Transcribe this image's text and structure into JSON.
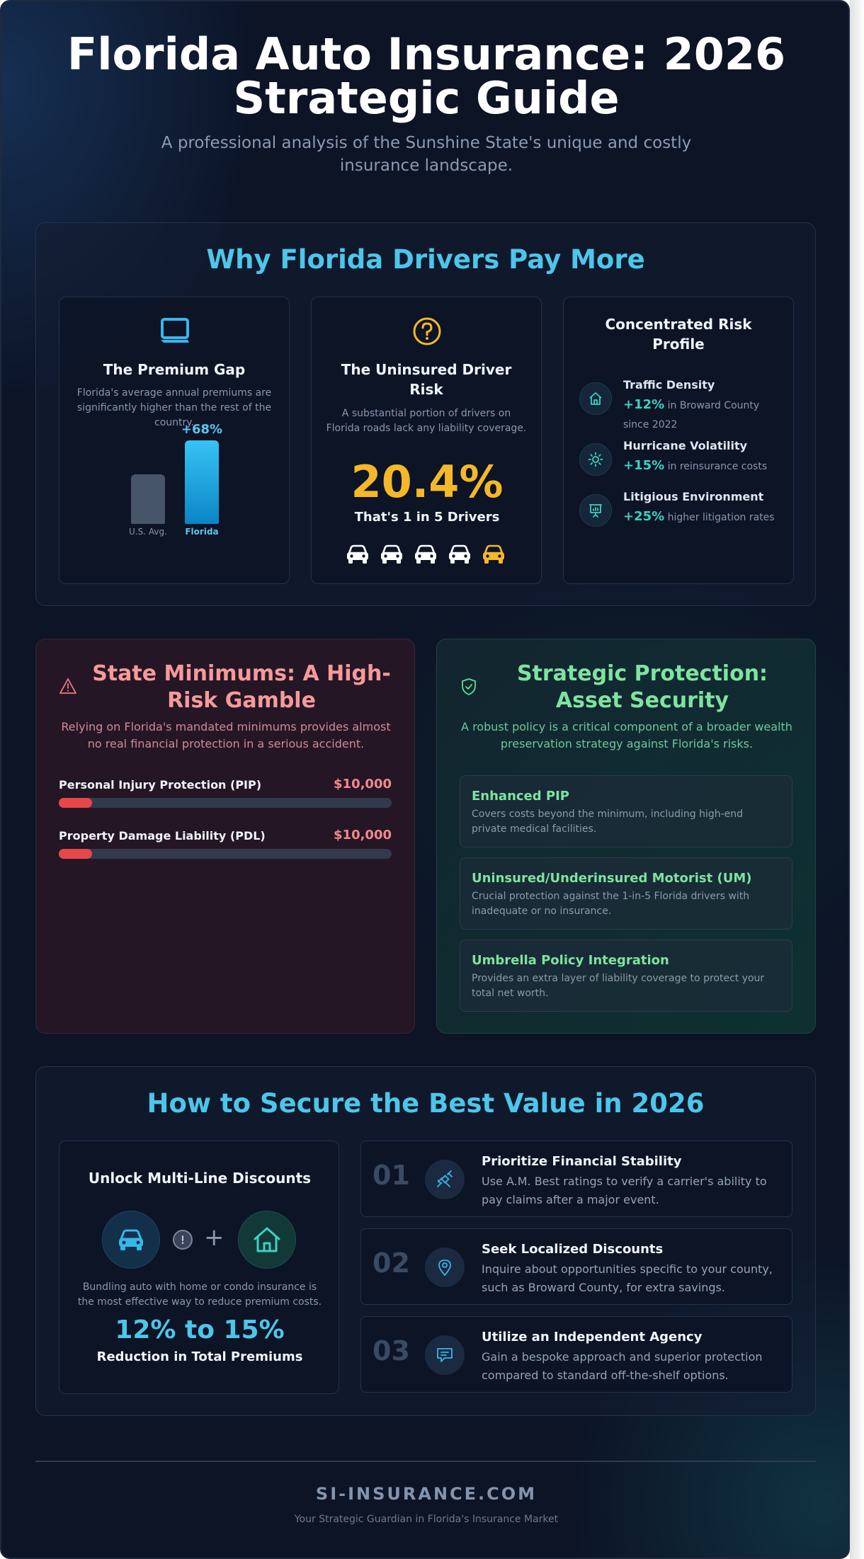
{
  "header": {
    "title_line1": "Florida Auto Insurance: 2026",
    "title_line2": "Strategic Guide",
    "subtitle": "A professional analysis of the Sunshine State's unique and costly insurance landscape."
  },
  "why_section": {
    "title": "Why Florida Drivers Pay More",
    "premium_gap": {
      "icon": "laptop-icon",
      "title": "The Premium Gap",
      "text": "Florida's average annual premiums are significantly higher than the rest of the country.",
      "bars": [
        {
          "label": "U.S. Avg.",
          "relative_value": 1.0,
          "color": "#475569"
        },
        {
          "label": "Florida",
          "relative_value": 1.68,
          "color": "#1aa6e6"
        }
      ],
      "delta_label": "+68%"
    },
    "uninsured": {
      "icon": "question-circle-icon",
      "title_line1": "The Uninsured Driver",
      "title_line2": "Risk",
      "text": "A substantial portion of drivers on Florida roads lack any liability coverage.",
      "stat": "20.4%",
      "stat_caption": "That's 1 in 5 Drivers",
      "stat_color": "#f5b829",
      "cars_total": 5,
      "cars_highlighted": 1
    },
    "risk_profile": {
      "title_line1": "Concentrated Risk",
      "title_line2": "Profile",
      "items": [
        {
          "icon": "home-icon",
          "name": "Traffic Density",
          "pct": "+12%",
          "detail_line1": " in Broward County",
          "detail_line2": "since 2022"
        },
        {
          "icon": "sun-icon",
          "name": "Hurricane Volatility",
          "pct": "+15%",
          "detail_line1": " in reinsurance costs",
          "detail_line2": ""
        },
        {
          "icon": "presentation-chart-icon",
          "name": "Litigious Environment",
          "pct": "+25%",
          "detail_line1": " higher litigation rates",
          "detail_line2": ""
        }
      ]
    }
  },
  "minimums": {
    "icon": "warning-triangle-icon",
    "title_line1": "State Minimums: A High-",
    "title_line2": "Risk Gamble",
    "text": "Relying on Florida's mandated minimums provides almost no real financial protection in a serious accident.",
    "items": [
      {
        "label": "Personal Injury Protection (PIP)",
        "value": "$10,000",
        "fill_fraction": 0.1
      },
      {
        "label": "Property Damage Liability (PDL)",
        "value": "$10,000",
        "fill_fraction": 0.1
      }
    ]
  },
  "protection": {
    "icon": "shield-check-icon",
    "title_line1": "Strategic Protection:",
    "title_line2": "Asset Security",
    "text": "A robust policy is a critical component of a broader wealth preservation strategy against Florida's risks.",
    "items": [
      {
        "title": "Enhanced PIP",
        "text": "Covers costs beyond the minimum, including high-end private medical facilities."
      },
      {
        "title": "Uninsured/Underinsured Motorist (UM)",
        "text": "Crucial protection against the 1-in-5 Florida drivers with inadequate or no insurance."
      },
      {
        "title": "Umbrella Policy Integration",
        "text": "Provides an extra layer of liability coverage to protect your total net worth."
      }
    ]
  },
  "value_section": {
    "title": "How to Secure the Best Value in 2026",
    "discount": {
      "title": "Unlock Multi-Line Discounts",
      "icons": [
        "car-icon",
        "info-icon",
        "plus-icon",
        "home-icon"
      ],
      "plus": "+",
      "text": "Bundling auto with home or condo insurance is the most effective way to reduce premium costs.",
      "stat": "12% to 15%",
      "stat_caption": "Reduction in Total Premiums"
    },
    "steps": [
      {
        "num": "01",
        "icon": "satellite-icon",
        "title": "Prioritize Financial Stability",
        "text": "Use A.M. Best ratings to verify a carrier's ability to pay claims after a major event."
      },
      {
        "num": "02",
        "icon": "map-pin-icon",
        "title": "Seek Localized Discounts",
        "text": "Inquire about opportunities specific to your county, such as Broward County, for extra savings."
      },
      {
        "num": "03",
        "icon": "chat-icon",
        "title": "Utilize an Independent Agency",
        "text": "Gain a bespoke approach and superior protection compared to standard off-the-shelf options."
      }
    ]
  },
  "footer": {
    "brand": "SI-INSURANCE.COM",
    "tagline": "Your Strategic Guardian in Florida's Insurance Market"
  },
  "colors": {
    "accent_cyan": "#4cc6ea",
    "accent_yellow": "#f5b829",
    "accent_red": "#e8474a",
    "accent_green": "#7fe3a0",
    "accent_teal": "#3fd0c0"
  }
}
